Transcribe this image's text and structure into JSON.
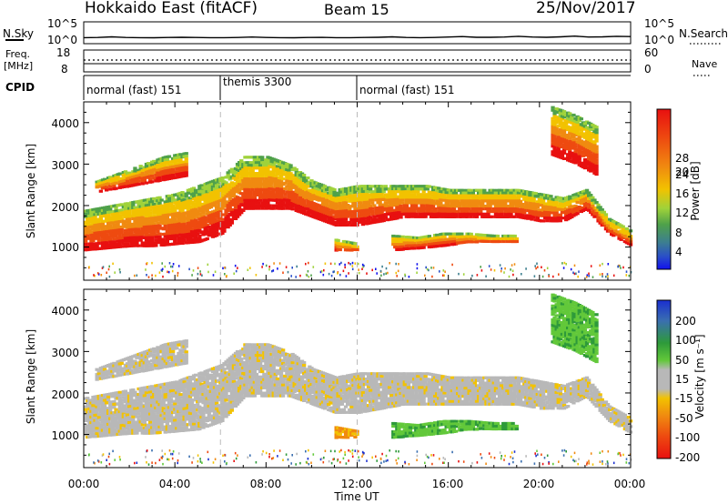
{
  "header": {
    "station": "Hokkaido East (fitACF)",
    "beam": "Beam 15",
    "date": "25/Nov/2017"
  },
  "noise_panel": {
    "left_label": "N.Sky",
    "right_label": "N.Search",
    "ticks": [
      "10^5",
      "10^0"
    ],
    "sky_trace": [
      0.35,
      0.36,
      0.42,
      0.36,
      0.35,
      0.34,
      0.36,
      0.38,
      0.36,
      0.35,
      0.35,
      0.36,
      0.4,
      0.36,
      0.35,
      0.34,
      0.36,
      0.37,
      0.35,
      0.35,
      0.36,
      0.38,
      0.42,
      0.36,
      0.35,
      0.36,
      0.4,
      0.44,
      0.38,
      0.38,
      0.4,
      0.46,
      0.4,
      0.38,
      0.42,
      0.48,
      0.4,
      0.42,
      0.46,
      0.44
    ]
  },
  "freq_panel": {
    "left_label_line1": "Freq.",
    "left_label_line2": "[MHz]",
    "left_ticks": [
      "18",
      "8"
    ],
    "right_ticks": [
      "60",
      "0"
    ],
    "right_label": "Nave"
  },
  "cpid": {
    "label": "CPID",
    "segments": [
      {
        "name": "normal (fast) 151",
        "start_hour": 0,
        "end_hour": 6
      },
      {
        "name": "themis 3300",
        "start_hour": 6,
        "end_hour": 12
      },
      {
        "name": "normal (fast) 151",
        "start_hour": 12,
        "end_hour": 24
      }
    ]
  },
  "power_panel": {
    "ylabel": "Slant Range [km]",
    "yticks": [
      "4000",
      "3000",
      "2000",
      "1000"
    ],
    "colorbar_label": "Power [dB]",
    "colorbar_ticks": [
      "28",
      "24",
      "20",
      "16",
      "12",
      "8",
      "4"
    ],
    "colors": [
      "#1111ee",
      "#2a4fc8",
      "#3d7f8f",
      "#4fa14a",
      "#9fd23a",
      "#f2c200",
      "#f08a10",
      "#ee4a10",
      "#e81010"
    ]
  },
  "velocity_panel": {
    "ylabel": "Slant Range [km]",
    "yticks": [
      "4000",
      "3000",
      "2000",
      "1000"
    ],
    "colorbar_label": "Velocity [m s⁻¹]",
    "colorbar_ticks": [
      "200",
      "100",
      "50",
      "15",
      "-15",
      "-50",
      "-100",
      "-200"
    ],
    "colors": [
      "#1a2fd0",
      "#3a6fb0",
      "#2e9a3a",
      "#62c83a",
      "#b8b8b8",
      "#f2c200",
      "#f08a10",
      "#ee4a10",
      "#e81010"
    ]
  },
  "x_axis": {
    "label": "Time UT",
    "ticks": [
      "00:00",
      "04:00",
      "08:00",
      "12:00",
      "16:00",
      "20:00",
      "00:00"
    ]
  },
  "chart_data": {
    "type": "heatmap",
    "title": "Hokkaido East (fitACF)",
    "subtitle": "Beam 15",
    "date": "25/Nov/2017",
    "xlabel": "Time UT",
    "ylabel": "Slant Range [km]",
    "xlim": [
      0,
      24
    ],
    "ylim": [
      200,
      4500
    ],
    "scatter_bands": [
      {
        "name": "main",
        "start_hour": 0,
        "end_hour": 24,
        "lower_km": [
          900,
          950,
          1000,
          1000,
          1050,
          1100,
          1300,
          1900,
          1900,
          1900,
          1700,
          1500,
          1500,
          1600,
          1700,
          1700,
          1700,
          1700,
          1700,
          1700,
          1600,
          1600,
          1900,
          1300,
          1000
        ],
        "upper_km": [
          1900,
          2000,
          2100,
          2200,
          2300,
          2500,
          2700,
          3200,
          3200,
          3000,
          2600,
          2400,
          2500,
          2500,
          2500,
          2500,
          2400,
          2400,
          2400,
          2400,
          2300,
          2200,
          2400,
          1700,
          1400
        ],
        "velocity": "low"
      },
      {
        "name": "early_upper",
        "start_hour": 0.5,
        "end_hour": 4.5,
        "lower_km": [
          2300,
          2400,
          2500,
          2600,
          2700
        ],
        "upper_km": [
          2600,
          2800,
          3000,
          3200,
          3300
        ],
        "velocity": "low"
      },
      {
        "name": "afternoon_lower",
        "start_hour": 13.5,
        "end_hour": 19,
        "lower_km": [
          900,
          950,
          1000,
          1100,
          1100,
          1100
        ],
        "upper_km": [
          1300,
          1250,
          1350,
          1350,
          1300,
          1300
        ],
        "velocity": "away"
      },
      {
        "name": "late_streak",
        "start_hour": 20.5,
        "end_hour": 22.5,
        "lower_km": [
          3200,
          3000,
          2700
        ],
        "upper_km": [
          4400,
          4200,
          3900
        ],
        "velocity": "away"
      },
      {
        "name": "near_noon",
        "start_hour": 11,
        "end_hour": 12,
        "lower_km": [
          900,
          900
        ],
        "upper_km": [
          1200,
          1100
        ],
        "velocity": "toward"
      }
    ]
  }
}
